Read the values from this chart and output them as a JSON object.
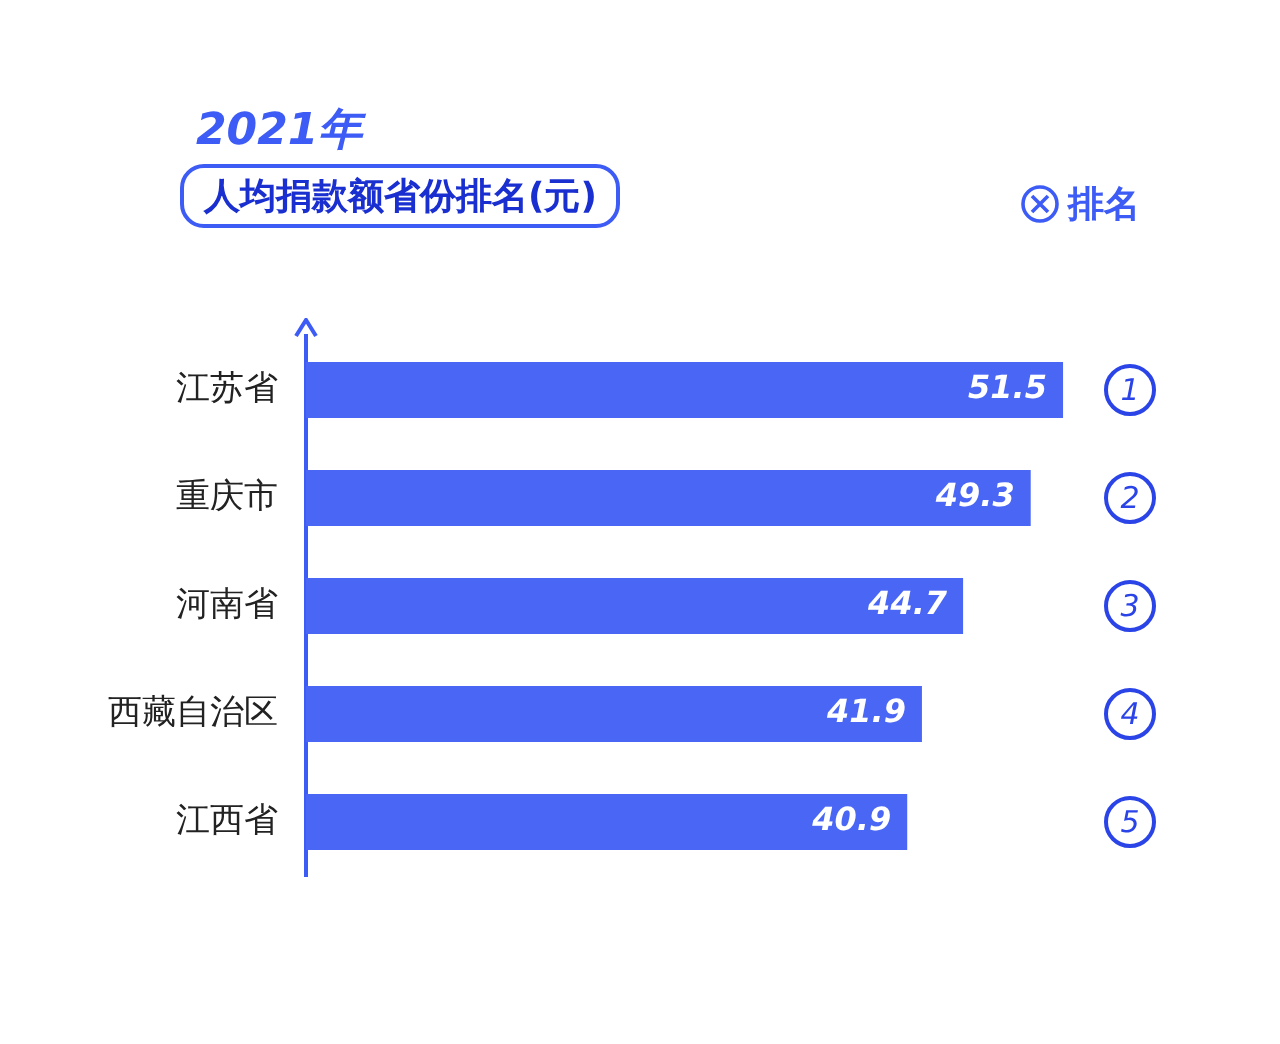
{
  "chart_data": {
    "type": "bar",
    "orientation": "horizontal",
    "title": "2021年",
    "subtitle": "人均捐款额省份排名(元)",
    "legend_title": "排名",
    "categories": [
      "江苏省",
      "重庆市",
      "河南省",
      "西藏自治区",
      "江西省"
    ],
    "values": [
      51.5,
      49.3,
      44.7,
      41.9,
      40.9
    ],
    "color": "#4a66f5",
    "tick_labels": "y",
    "grid": false,
    "data_labels": true,
    "annotations": [
      "1",
      "2",
      "3",
      "4",
      "5"
    ]
  }
}
